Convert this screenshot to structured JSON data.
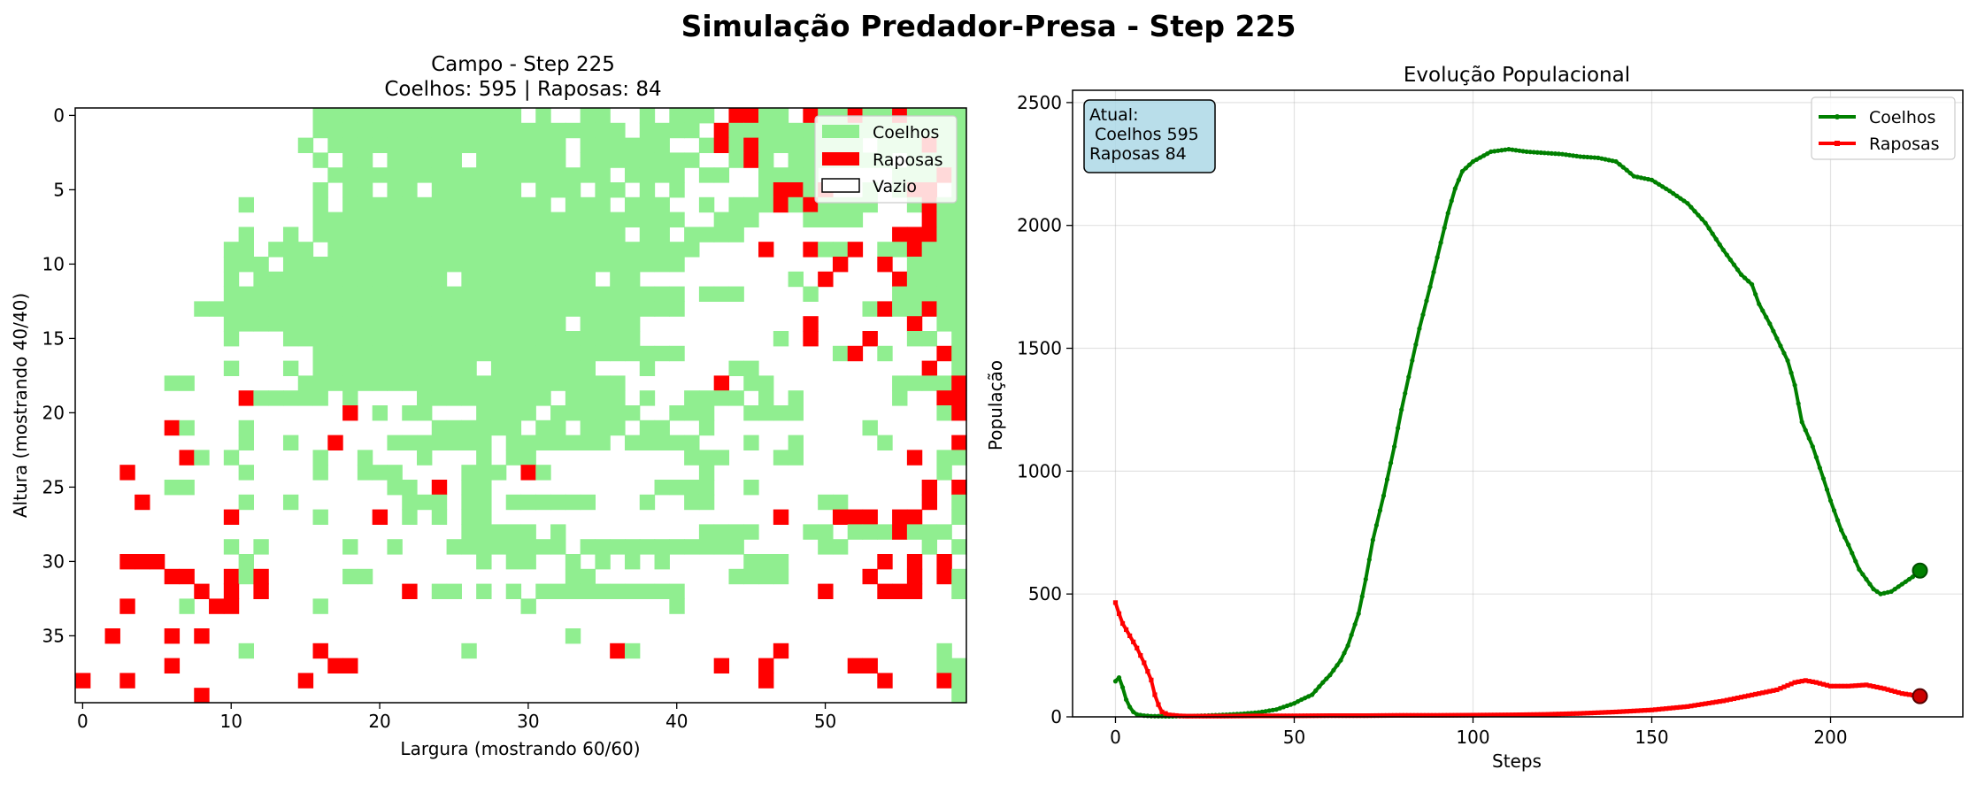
{
  "suptitle": "Simulação Predador-Presa - Step 225",
  "colors": {
    "rabbit": "#90ee90",
    "fox": "#ff0000",
    "rabbit_line": "#008000",
    "fox_line": "#ff0000",
    "info_box": "#add8e6"
  },
  "chart_data": [
    {
      "type": "heatmap",
      "title_line1": "Campo - Step 225",
      "title_line2": "Coelhos: 595 |  Raposas: 84",
      "xlabel": "Largura (mostrando 60/60)",
      "ylabel": "Altura (mostrando 40/40)",
      "xlim": [
        0,
        60
      ],
      "ylim": [
        40,
        0
      ],
      "x_ticks": [
        0,
        10,
        20,
        30,
        40,
        50
      ],
      "y_ticks": [
        0,
        5,
        10,
        15,
        20,
        25,
        30,
        35
      ],
      "legend": {
        "placement": "top-right",
        "items": [
          {
            "label": "Coelhos",
            "color": "#90ee90"
          },
          {
            "label": "Raposas",
            "color": "#ff0000"
          },
          {
            "label": "Vazio",
            "color": "#ffffff"
          }
        ]
      },
      "cell_legend": {
        "R": "Coelhos",
        "F": "Raposas",
        ".": "Vazio"
      },
      "grid": [
        "................RRRRRRRRRRRRRR.R..RR..R.RRR.FRRR.FRRRRRRRRRR",
        "................RRRRRRRRRRRRRRRRRRRRR.RRRR..RRRRRRRRRRRRRRRR",
        "...............R.RRRRRRRRRRRRRRRR.RRRRRR..R.RFRRRRRRR.RRRRRR",
        "................R.RR.RRRRR.RRRRRR.RRRRRRRR..RFR.RRRRRRR.RRRR",
        ".................RRRRRRRRRRRRRRRRRRR.RRRR.RR..RRRR.....RRRRR",
        "................R.RR.RR.RRRRRR.RRR.RR.R.R.....RRRR...R.RFF.R",
        "...........R....R.RRRRRRRRRRRRRR.RRR.RRR..R.RRRRRRRRRR..RFRR",
        "................RRRRRRRRRRRRRRRRRRRRRRRRR..RRR...RRRR.....RR",
        "...........R..R.RRRRRRRRRRRRRRRRRRRRR.RR.RRRR...........RFRR",
        "..........RR.RRR.RRRRRRRRRRRRRRRRRRRRRRRRR.......FRRF.RRRRRR",
        "..........RRR.RRRRRRRRRRRRRRRRRRRRRRRRRRR..........R..F.RRRR",
        "..........R.RRRRRRRRRRRRR.RRRRRRRRR.RR..........R......RRRRR",
        "..........RRRRRRRRRRRRRRRRRRRRRRRRRRRRRRR.RRR....R.....RRRRR",
        "........RRRRRRRRRRRRRRRRRRRRRRRRRRRRRRRRR............RRRRRRR",
        "..........RRRRRRRRRRRRRRRRRRRRRRR.RRRR..................F.RR",
        "..........R...RRRRRRRRRRRRRRRRRRRRRRRR.........R........RR.R",
        "................RRRRRRRRRRRRRRRRRRRRRRRRR..........RF.R...FR",
        "..........R...R.RRRRRRRRRRR.RRRRRRR...R.....RR.............R",
        "......RR.......RRRRRRRRRRRRRRRRRRRRRR........RR........RRRRR",
        "...........RRRRRR.R....RRRRRRRRR.RRRR.R..RRRR.R.R......R..FF",
        "....................R.RR...RRRR.RRRRRR..RRR..RRRR.........RR",
        "......RR...R............RRRRRR.RR.RRR.RR..R..........R......",
        "...........R..R..F...RRRRRRR.RRRRRRR.RRRRR...R..R.....R.....",
        "........R.R.....R..R...R...R.RR..........RRR...RR.......F.RR",
        "...F.......R....R..RRR....RRR..R..........R...............R.",
        "......RR.............RR.F.RR...........RRRR..R.............F",
        "....F......R..R.......RRR.RR.RRRRRR...R..RR.......RR.......R",
        "..........F.....R...F.R.R.RR...................F...........R",
        "..........................RRRRR.R.........RRRR...RR.RRRRRRR.",
        "..........R.R.....R..R...RRRRRRRR.RRRRRRRRRRR.....RR.....R.R",
        "...........R...............R.RR..R.R.R.R.....RRR........F.F.",
        ".......F...R......RR.............RR.........RRRR........F..R",
        "............R...........RR.R.R.RRRRRRRRRR.............FRF..R",
        ".......R........R.............R.........R...................",
        "............................................................",
        "..F...F..........................R..........................",
        "...........R..............R..........R....................R.",
        "..........................................................RR",
        "...........................................................R",
        "...........................................................R"
      ],
      "fox_cells": [
        [
          45,
          0
        ],
        [
          52,
          0
        ],
        [
          55,
          0
        ],
        [
          43,
          1
        ],
        [
          43,
          2
        ],
        [
          57,
          2
        ],
        [
          58,
          4
        ],
        [
          47,
          5
        ],
        [
          48,
          5
        ],
        [
          50,
          5
        ],
        [
          56,
          5
        ],
        [
          47,
          6
        ],
        [
          49,
          6
        ],
        [
          57,
          6
        ],
        [
          57,
          7
        ],
        [
          55,
          8
        ],
        [
          56,
          8
        ],
        [
          46,
          9
        ],
        [
          49,
          9
        ],
        [
          56,
          9
        ],
        [
          51,
          10
        ],
        [
          50,
          11
        ],
        [
          55,
          11
        ],
        [
          54,
          13
        ],
        [
          57,
          13
        ],
        [
          49,
          14
        ],
        [
          49,
          15
        ],
        [
          53,
          15
        ],
        [
          57,
          17
        ],
        [
          43,
          18
        ],
        [
          59,
          18
        ],
        [
          11,
          19
        ],
        [
          58,
          19
        ],
        [
          6,
          21
        ],
        [
          18,
          20
        ],
        [
          59,
          20
        ],
        [
          7,
          23
        ],
        [
          59,
          22
        ],
        [
          30,
          24
        ],
        [
          57,
          25
        ],
        [
          57,
          26
        ],
        [
          51,
          27
        ],
        [
          52,
          27
        ],
        [
          53,
          27
        ],
        [
          55,
          27
        ],
        [
          56,
          27
        ],
        [
          55,
          28
        ],
        [
          3,
          30
        ],
        [
          4,
          30
        ],
        [
          5,
          30
        ],
        [
          54,
          30
        ],
        [
          6,
          31
        ],
        [
          10,
          31
        ],
        [
          12,
          31
        ],
        [
          53,
          31
        ],
        [
          58,
          31
        ],
        [
          8,
          32
        ],
        [
          10,
          32
        ],
        [
          12,
          32
        ],
        [
          22,
          32
        ],
        [
          50,
          32
        ],
        [
          9,
          33
        ],
        [
          10,
          33
        ],
        [
          3,
          33
        ],
        [
          55,
          32
        ],
        [
          2,
          35
        ],
        [
          6,
          35
        ],
        [
          8,
          35
        ],
        [
          16,
          36
        ],
        [
          36,
          36
        ],
        [
          47,
          36
        ],
        [
          6,
          37
        ],
        [
          17,
          37
        ],
        [
          18,
          37
        ],
        [
          43,
          37
        ],
        [
          46,
          37
        ],
        [
          52,
          37
        ],
        [
          53,
          37
        ],
        [
          0,
          38
        ],
        [
          3,
          38
        ],
        [
          15,
          38
        ],
        [
          46,
          38
        ],
        [
          54,
          38
        ],
        [
          58,
          38
        ],
        [
          8,
          39
        ]
      ]
    },
    {
      "type": "line",
      "title": "Evolução Populacional",
      "xlabel": "Steps",
      "ylabel": "População",
      "xlim": [
        -12,
        237
      ],
      "ylim": [
        0,
        2550
      ],
      "x_ticks": [
        0,
        50,
        100,
        150,
        200
      ],
      "y_ticks": [
        0,
        500,
        1000,
        1500,
        2000,
        2500
      ],
      "grid": true,
      "legend_placement": "top-right",
      "info_box": [
        "Atual:",
        " Coelhos 595",
        "Raposas 84"
      ],
      "series": [
        {
          "name": "Coelhos",
          "color": "#008000",
          "points": [
            [
              0,
              145
            ],
            [
              1,
              160
            ],
            [
              2,
              120
            ],
            [
              3,
              70
            ],
            [
              4,
              40
            ],
            [
              5,
              20
            ],
            [
              6,
              10
            ],
            [
              8,
              5
            ],
            [
              10,
              3
            ],
            [
              15,
              2
            ],
            [
              20,
              3
            ],
            [
              25,
              5
            ],
            [
              30,
              8
            ],
            [
              35,
              12
            ],
            [
              40,
              18
            ],
            [
              45,
              30
            ],
            [
              50,
              55
            ],
            [
              52,
              70
            ],
            [
              55,
              90
            ],
            [
              58,
              140
            ],
            [
              60,
              170
            ],
            [
              63,
              230
            ],
            [
              65,
              290
            ],
            [
              68,
              420
            ],
            [
              70,
              560
            ],
            [
              72,
              720
            ],
            [
              75,
              900
            ],
            [
              78,
              1100
            ],
            [
              80,
              1250
            ],
            [
              83,
              1450
            ],
            [
              85,
              1580
            ],
            [
              88,
              1750
            ],
            [
              90,
              1870
            ],
            [
              93,
              2050
            ],
            [
              95,
              2150
            ],
            [
              97,
              2220
            ],
            [
              100,
              2260
            ],
            [
              105,
              2300
            ],
            [
              110,
              2310
            ],
            [
              115,
              2300
            ],
            [
              120,
              2295
            ],
            [
              125,
              2290
            ],
            [
              130,
              2280
            ],
            [
              135,
              2275
            ],
            [
              140,
              2260
            ],
            [
              143,
              2225
            ],
            [
              145,
              2200
            ],
            [
              150,
              2185
            ],
            [
              155,
              2140
            ],
            [
              160,
              2090
            ],
            [
              165,
              2010
            ],
            [
              170,
              1900
            ],
            [
              175,
              1800
            ],
            [
              178,
              1760
            ],
            [
              180,
              1680
            ],
            [
              183,
              1600
            ],
            [
              185,
              1540
            ],
            [
              188,
              1450
            ],
            [
              190,
              1350
            ],
            [
              192,
              1200
            ],
            [
              195,
              1100
            ],
            [
              198,
              970
            ],
            [
              200,
              880
            ],
            [
              203,
              760
            ],
            [
              205,
              700
            ],
            [
              208,
              600
            ],
            [
              210,
              560
            ],
            [
              212,
              520
            ],
            [
              214,
              500
            ],
            [
              217,
              510
            ],
            [
              220,
              540
            ],
            [
              223,
              570
            ],
            [
              225,
              595
            ]
          ]
        },
        {
          "name": "Raposas",
          "color": "#ff0000",
          "points": [
            [
              0,
              465
            ],
            [
              1,
              420
            ],
            [
              2,
              380
            ],
            [
              4,
              330
            ],
            [
              6,
              280
            ],
            [
              8,
              220
            ],
            [
              10,
              150
            ],
            [
              11,
              90
            ],
            [
              12,
              50
            ],
            [
              13,
              20
            ],
            [
              15,
              8
            ],
            [
              18,
              4
            ],
            [
              20,
              3
            ],
            [
              30,
              3
            ],
            [
              40,
              4
            ],
            [
              50,
              4
            ],
            [
              60,
              5
            ],
            [
              70,
              5
            ],
            [
              80,
              6
            ],
            [
              90,
              6
            ],
            [
              100,
              7
            ],
            [
              110,
              8
            ],
            [
              120,
              10
            ],
            [
              130,
              14
            ],
            [
              140,
              20
            ],
            [
              150,
              28
            ],
            [
              160,
              42
            ],
            [
              170,
              65
            ],
            [
              175,
              80
            ],
            [
              180,
              95
            ],
            [
              185,
              110
            ],
            [
              190,
              140
            ],
            [
              193,
              148
            ],
            [
              196,
              140
            ],
            [
              200,
              125
            ],
            [
              205,
              125
            ],
            [
              210,
              130
            ],
            [
              215,
              115
            ],
            [
              220,
              95
            ],
            [
              225,
              84
            ]
          ]
        }
      ]
    }
  ]
}
